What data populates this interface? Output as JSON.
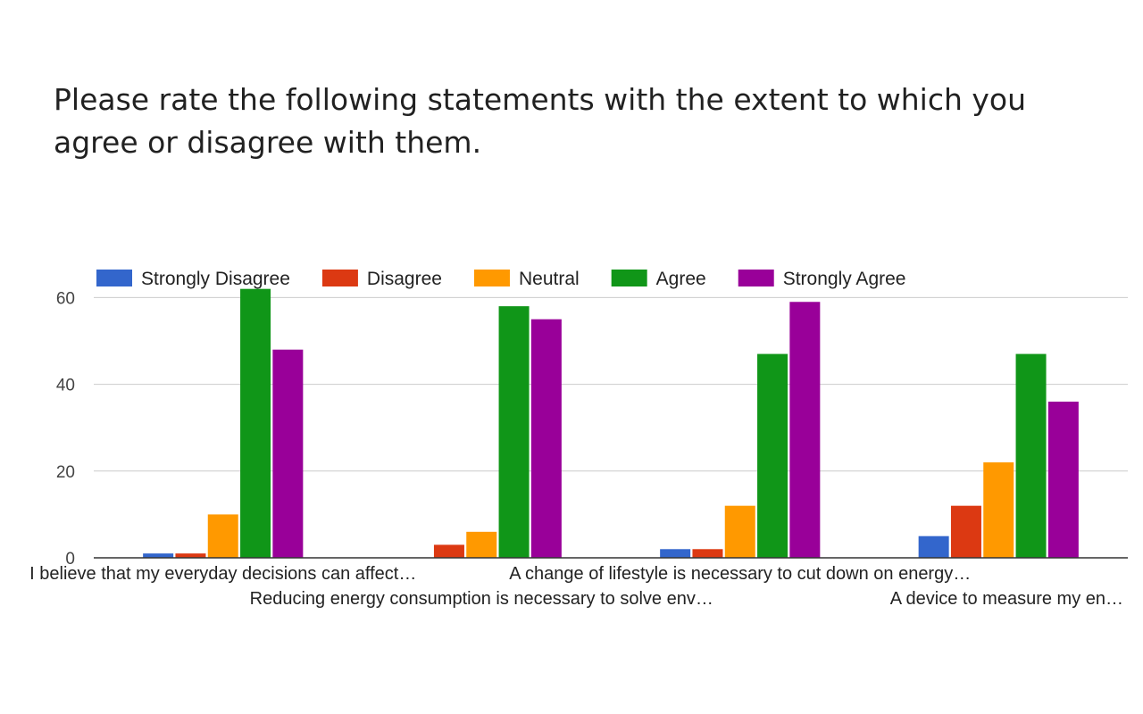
{
  "chart_data": {
    "type": "bar",
    "title": "Please rate the following statements with the extent to which you agree or disagree with them.",
    "categories": [
      "I believe that my everyday decisions can affect…",
      "Reducing energy consumption is necessary to solve env…",
      "A change of lifestyle is necessary to cut down on energy…",
      "A device to measure my en…"
    ],
    "series": [
      {
        "name": "Strongly Disagree",
        "color": "#3366cc",
        "values": [
          1,
          0,
          2,
          5
        ]
      },
      {
        "name": "Disagree",
        "color": "#dc3912",
        "values": [
          1,
          3,
          2,
          12
        ]
      },
      {
        "name": "Neutral",
        "color": "#ff9900",
        "values": [
          10,
          6,
          12,
          22
        ]
      },
      {
        "name": "Agree",
        "color": "#109618",
        "values": [
          62,
          58,
          47,
          47
        ]
      },
      {
        "name": "Strongly Agree",
        "color": "#990099",
        "values": [
          48,
          55,
          59,
          36
        ]
      }
    ],
    "y_ticks": [
      0,
      20,
      40,
      60
    ],
    "ylim": [
      0,
      60
    ],
    "grid": true,
    "legend_position": "top-left"
  }
}
